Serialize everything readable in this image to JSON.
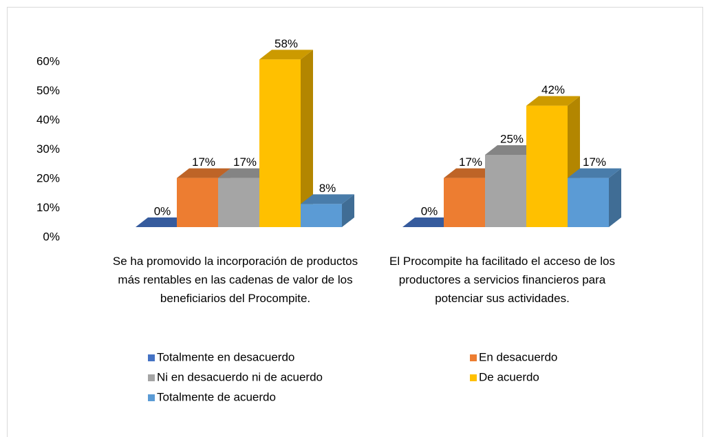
{
  "chart_data": {
    "type": "bar3d",
    "categories": [
      "Se ha promovido la incorporación de productos más rentables en las cadenas de valor de los beneficiarios del Procompite.",
      "El Procompite ha facilitado el acceso de los productores a servicios financieros para potenciar sus actividades."
    ],
    "series": [
      {
        "name": "Totalmente en desacuerdo",
        "color": "#4472c4",
        "values": [
          0,
          0
        ],
        "value_labels": [
          "0%",
          "0%"
        ]
      },
      {
        "name": "En desacuerdo",
        "color": "#ed7d31",
        "values": [
          17,
          17
        ],
        "value_labels": [
          "17%",
          "17%"
        ]
      },
      {
        "name": "Ni en desacuerdo ni de acuerdo",
        "color": "#a5a5a5",
        "values": [
          17,
          25
        ],
        "value_labels": [
          "17%",
          "25%"
        ]
      },
      {
        "name": "De acuerdo",
        "color": "#ffc000",
        "values": [
          58,
          42
        ],
        "value_labels": [
          "58%",
          "42%"
        ]
      },
      {
        "name": "Totalmente de acuerdo",
        "color": "#5b9bd5",
        "values": [
          8,
          17
        ],
        "value_labels": [
          "8%",
          "17%"
        ]
      }
    ],
    "ylim": [
      0,
      60
    ],
    "yticks": [
      {
        "value": 0,
        "label": "0%"
      },
      {
        "value": 10,
        "label": "10%"
      },
      {
        "value": 20,
        "label": "20%"
      },
      {
        "value": 30,
        "label": "30%"
      },
      {
        "value": 40,
        "label": "40%"
      },
      {
        "value": 50,
        "label": "50%"
      },
      {
        "value": 60,
        "label": "60%"
      }
    ],
    "legend": "bottom"
  }
}
